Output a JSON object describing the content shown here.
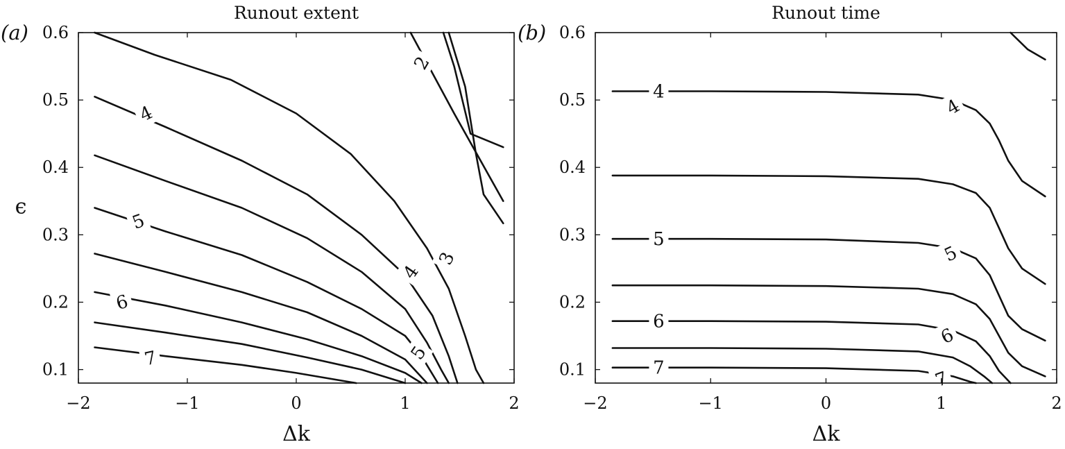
{
  "chart_data": [
    {
      "type": "contour",
      "panel_label": "(a)",
      "title": "Runout extent",
      "xlabel": "Δk",
      "ylabel": "ϵ",
      "xlim": [
        -2,
        2
      ],
      "ylim": [
        0.08,
        0.6
      ],
      "xticks": [
        -2,
        -1,
        0,
        1,
        2
      ],
      "xtick_labels": [
        "−2",
        "−1",
        "0",
        "1",
        "2"
      ],
      "yticks": [
        0.1,
        0.2,
        0.3,
        0.4,
        0.5,
        0.6
      ],
      "ytick_labels": [
        "0.1",
        "0.2",
        "0.3",
        "0.4",
        "0.5",
        "0.6"
      ],
      "grid": false,
      "contours": [
        {
          "points": [
            [
              1.05,
              0.6
            ],
            [
              1.45,
              0.48
            ],
            [
              1.9,
              0.35
            ]
          ]
        },
        {
          "points": [
            [
              1.35,
              0.6
            ],
            [
              1.45,
              0.55
            ],
            [
              1.6,
              0.45
            ],
            [
              1.9,
              0.43
            ]
          ]
        },
        {
          "points": [
            [
              1.4,
              0.6
            ],
            [
              1.55,
              0.52
            ],
            [
              1.65,
              0.42
            ],
            [
              1.72,
              0.36
            ],
            [
              1.9,
              0.317
            ]
          ]
        },
        {
          "points": [
            [
              -1.85,
              0.6
            ],
            [
              -1.3,
              0.567
            ],
            [
              -0.6,
              0.53
            ],
            [
              0.0,
              0.48
            ],
            [
              0.5,
              0.42
            ],
            [
              0.9,
              0.35
            ],
            [
              1.2,
              0.28
            ],
            [
              1.4,
              0.22
            ],
            [
              1.55,
              0.15
            ],
            [
              1.65,
              0.1
            ],
            [
              1.72,
              0.08
            ]
          ]
        },
        {
          "points": [
            [
              -1.85,
              0.505
            ],
            [
              -1.2,
              0.46
            ],
            [
              -0.5,
              0.41
            ],
            [
              0.1,
              0.36
            ],
            [
              0.6,
              0.3
            ],
            [
              1.0,
              0.24
            ],
            [
              1.25,
              0.18
            ],
            [
              1.4,
              0.12
            ],
            [
              1.48,
              0.08
            ]
          ]
        },
        {
          "points": [
            [
              -1.85,
              0.418
            ],
            [
              -1.2,
              0.38
            ],
            [
              -0.5,
              0.34
            ],
            [
              0.1,
              0.295
            ],
            [
              0.6,
              0.245
            ],
            [
              1.0,
              0.19
            ],
            [
              1.2,
              0.14
            ],
            [
              1.33,
              0.1
            ],
            [
              1.4,
              0.08
            ]
          ]
        },
        {
          "points": [
            [
              -1.85,
              0.34
            ],
            [
              -1.2,
              0.305
            ],
            [
              -0.5,
              0.27
            ],
            [
              0.1,
              0.23
            ],
            [
              0.6,
              0.19
            ],
            [
              1.0,
              0.15
            ],
            [
              1.15,
              0.12
            ],
            [
              1.3,
              0.08
            ]
          ]
        },
        {
          "points": [
            [
              -1.85,
              0.272
            ],
            [
              -1.2,
              0.245
            ],
            [
              -0.5,
              0.215
            ],
            [
              0.1,
              0.185
            ],
            [
              0.6,
              0.15
            ],
            [
              1.0,
              0.115
            ],
            [
              1.2,
              0.08
            ]
          ]
        },
        {
          "points": [
            [
              -1.85,
              0.215
            ],
            [
              -1.2,
              0.195
            ],
            [
              -0.5,
              0.17
            ],
            [
              0.1,
              0.145
            ],
            [
              0.6,
              0.12
            ],
            [
              1.0,
              0.095
            ],
            [
              1.15,
              0.08
            ]
          ]
        },
        {
          "points": [
            [
              -1.85,
              0.17
            ],
            [
              -1.2,
              0.155
            ],
            [
              -0.5,
              0.138
            ],
            [
              0.1,
              0.118
            ],
            [
              0.6,
              0.1
            ],
            [
              1.0,
              0.08
            ]
          ]
        },
        {
          "points": [
            [
              -1.85,
              0.133
            ],
            [
              -1.2,
              0.12
            ],
            [
              -0.5,
              0.107
            ],
            [
              0.0,
              0.095
            ],
            [
              0.55,
              0.08
            ]
          ]
        }
      ],
      "labels": [
        {
          "text": "2",
          "x": 1.15,
          "y": 0.555,
          "angle": -60
        },
        {
          "text": "3",
          "x": 1.38,
          "y": 0.265,
          "angle": -65
        },
        {
          "text": "4",
          "x": -1.38,
          "y": 0.48,
          "angle": -25
        },
        {
          "text": "4",
          "x": 1.05,
          "y": 0.245,
          "angle": -55
        },
        {
          "text": "5",
          "x": -1.45,
          "y": 0.32,
          "angle": -20
        },
        {
          "text": "5",
          "x": 1.12,
          "y": 0.125,
          "angle": -55
        },
        {
          "text": "6",
          "x": -1.6,
          "y": 0.2,
          "angle": -15
        },
        {
          "text": "7",
          "x": -1.34,
          "y": 0.117,
          "angle": -12
        }
      ]
    },
    {
      "type": "contour",
      "panel_label": "(b)",
      "title": "Runout time",
      "xlabel": "Δk",
      "ylabel": "",
      "xlim": [
        -2,
        2
      ],
      "ylim": [
        0.08,
        0.6
      ],
      "xticks": [
        -2,
        -1,
        0,
        1,
        2
      ],
      "xtick_labels": [
        "−2",
        "−1",
        "0",
        "1",
        "2"
      ],
      "yticks": [
        0.1,
        0.2,
        0.3,
        0.4,
        0.5,
        0.6
      ],
      "ytick_labels": [
        "0.1",
        "0.2",
        "0.3",
        "0.4",
        "0.5",
        "0.6"
      ],
      "grid": false,
      "contours": [
        {
          "points": [
            [
              1.6,
              0.6
            ],
            [
              1.75,
              0.575
            ],
            [
              1.9,
              0.56
            ]
          ]
        },
        {
          "points": [
            [
              -1.85,
              0.513
            ],
            [
              -1.0,
              0.513
            ],
            [
              0.0,
              0.512
            ],
            [
              0.8,
              0.508
            ],
            [
              1.1,
              0.5
            ],
            [
              1.3,
              0.485
            ],
            [
              1.42,
              0.465
            ],
            [
              1.5,
              0.44
            ],
            [
              1.58,
              0.41
            ],
            [
              1.7,
              0.38
            ],
            [
              1.9,
              0.357
            ]
          ]
        },
        {
          "points": [
            [
              -1.85,
              0.388
            ],
            [
              -1.0,
              0.388
            ],
            [
              0.0,
              0.387
            ],
            [
              0.8,
              0.383
            ],
            [
              1.1,
              0.375
            ],
            [
              1.3,
              0.362
            ],
            [
              1.42,
              0.34
            ],
            [
              1.5,
              0.31
            ],
            [
              1.58,
              0.28
            ],
            [
              1.7,
              0.25
            ],
            [
              1.9,
              0.227
            ]
          ]
        },
        {
          "points": [
            [
              -1.85,
              0.294
            ],
            [
              -1.0,
              0.294
            ],
            [
              0.0,
              0.293
            ],
            [
              0.8,
              0.288
            ],
            [
              1.1,
              0.28
            ],
            [
              1.3,
              0.265
            ],
            [
              1.42,
              0.24
            ],
            [
              1.5,
              0.21
            ],
            [
              1.58,
              0.18
            ],
            [
              1.7,
              0.16
            ],
            [
              1.9,
              0.143
            ]
          ]
        },
        {
          "points": [
            [
              -1.85,
              0.225
            ],
            [
              -1.0,
              0.225
            ],
            [
              0.0,
              0.224
            ],
            [
              0.8,
              0.22
            ],
            [
              1.1,
              0.212
            ],
            [
              1.3,
              0.197
            ],
            [
              1.42,
              0.175
            ],
            [
              1.5,
              0.15
            ],
            [
              1.58,
              0.125
            ],
            [
              1.7,
              0.105
            ],
            [
              1.9,
              0.09
            ]
          ]
        },
        {
          "points": [
            [
              -1.85,
              0.172
            ],
            [
              -1.0,
              0.172
            ],
            [
              0.0,
              0.171
            ],
            [
              0.8,
              0.167
            ],
            [
              1.1,
              0.158
            ],
            [
              1.3,
              0.142
            ],
            [
              1.42,
              0.12
            ],
            [
              1.5,
              0.098
            ],
            [
              1.6,
              0.08
            ]
          ]
        },
        {
          "points": [
            [
              -1.85,
              0.132
            ],
            [
              -1.0,
              0.132
            ],
            [
              0.0,
              0.131
            ],
            [
              0.8,
              0.127
            ],
            [
              1.1,
              0.118
            ],
            [
              1.25,
              0.105
            ],
            [
              1.37,
              0.09
            ],
            [
              1.44,
              0.08
            ]
          ]
        },
        {
          "points": [
            [
              -1.85,
              0.103
            ],
            [
              -1.0,
              0.103
            ],
            [
              0.0,
              0.102
            ],
            [
              0.8,
              0.098
            ],
            [
              1.1,
              0.09
            ],
            [
              1.25,
              0.082
            ],
            [
              1.3,
              0.08
            ]
          ]
        }
      ],
      "labels": [
        {
          "text": "4",
          "x": -1.45,
          "y": 0.513,
          "angle": 0
        },
        {
          "text": "4",
          "x": 1.1,
          "y": 0.49,
          "angle": -30
        },
        {
          "text": "5",
          "x": -1.45,
          "y": 0.294,
          "angle": 0
        },
        {
          "text": "5",
          "x": 1.08,
          "y": 0.272,
          "angle": -25
        },
        {
          "text": "6",
          "x": -1.45,
          "y": 0.172,
          "angle": 0
        },
        {
          "text": "6",
          "x": 1.05,
          "y": 0.15,
          "angle": -25
        },
        {
          "text": "7",
          "x": -1.45,
          "y": 0.103,
          "angle": 0
        },
        {
          "text": "7",
          "x": 1.0,
          "y": 0.086,
          "angle": -20
        }
      ]
    }
  ]
}
